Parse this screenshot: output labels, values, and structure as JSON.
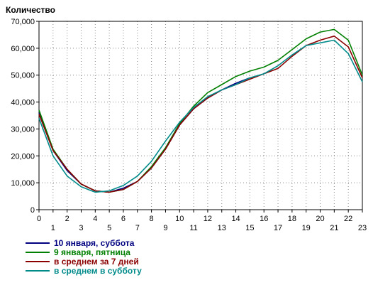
{
  "chart_data": {
    "type": "line",
    "title": "Количество",
    "x": [
      0,
      1,
      2,
      3,
      4,
      5,
      6,
      7,
      8,
      9,
      10,
      11,
      12,
      13,
      14,
      15,
      16,
      17,
      18,
      19,
      20,
      21,
      22,
      23
    ],
    "xlim": [
      0,
      23
    ],
    "ylim": [
      0,
      70000
    ],
    "y_ticks": [
      0,
      10000,
      20000,
      30000,
      40000,
      50000,
      60000,
      70000
    ],
    "y_tick_labels": [
      "0",
      "10,000",
      "20,000",
      "30,000",
      "40,000",
      "50,000",
      "60,000",
      "70,000"
    ],
    "x_tick_labels": [
      "0",
      "1",
      "2",
      "3",
      "4",
      "5",
      "6",
      "7",
      "8",
      "9",
      "10",
      "11",
      "12",
      "13",
      "14",
      "15",
      "16",
      "17",
      "18",
      "19",
      "20",
      "21",
      "22",
      "23"
    ],
    "grid": true,
    "legend_position": "bottom-left",
    "series": [
      {
        "name": "10 января, суббота",
        "color": "#000080",
        "values": [
          36000,
          22000,
          14500,
          9500,
          7000,
          6500,
          8000,
          10500,
          15500,
          22500,
          31500,
          37500,
          41500,
          44500,
          47000,
          49000,
          null,
          null,
          null,
          null,
          null,
          null,
          null,
          null
        ]
      },
      {
        "name": "9 января, пятница",
        "color": "#008000",
        "values": [
          37000,
          22500,
          15000,
          9500,
          7000,
          6500,
          7500,
          10500,
          16000,
          23000,
          32000,
          38500,
          43500,
          46500,
          49500,
          51500,
          53000,
          55500,
          59500,
          63500,
          66000,
          67000,
          63000,
          50000
        ]
      },
      {
        "name": "в среднем за 7 дней",
        "color": "#8b0000",
        "values": [
          35500,
          22000,
          15000,
          9500,
          7000,
          6500,
          7500,
          10500,
          15500,
          22500,
          31500,
          37500,
          41500,
          44500,
          46500,
          48500,
          50500,
          52500,
          57000,
          61000,
          63000,
          64500,
          60500,
          49000
        ]
      },
      {
        "name": "в среднем в субботу",
        "color": "#008b8b",
        "values": [
          34000,
          20000,
          12500,
          8500,
          6500,
          7000,
          9000,
          12500,
          18000,
          25500,
          32500,
          38000,
          42000,
          44500,
          46500,
          49000,
          50500,
          53500,
          57500,
          61000,
          62000,
          63000,
          58000,
          47500
        ]
      }
    ]
  }
}
